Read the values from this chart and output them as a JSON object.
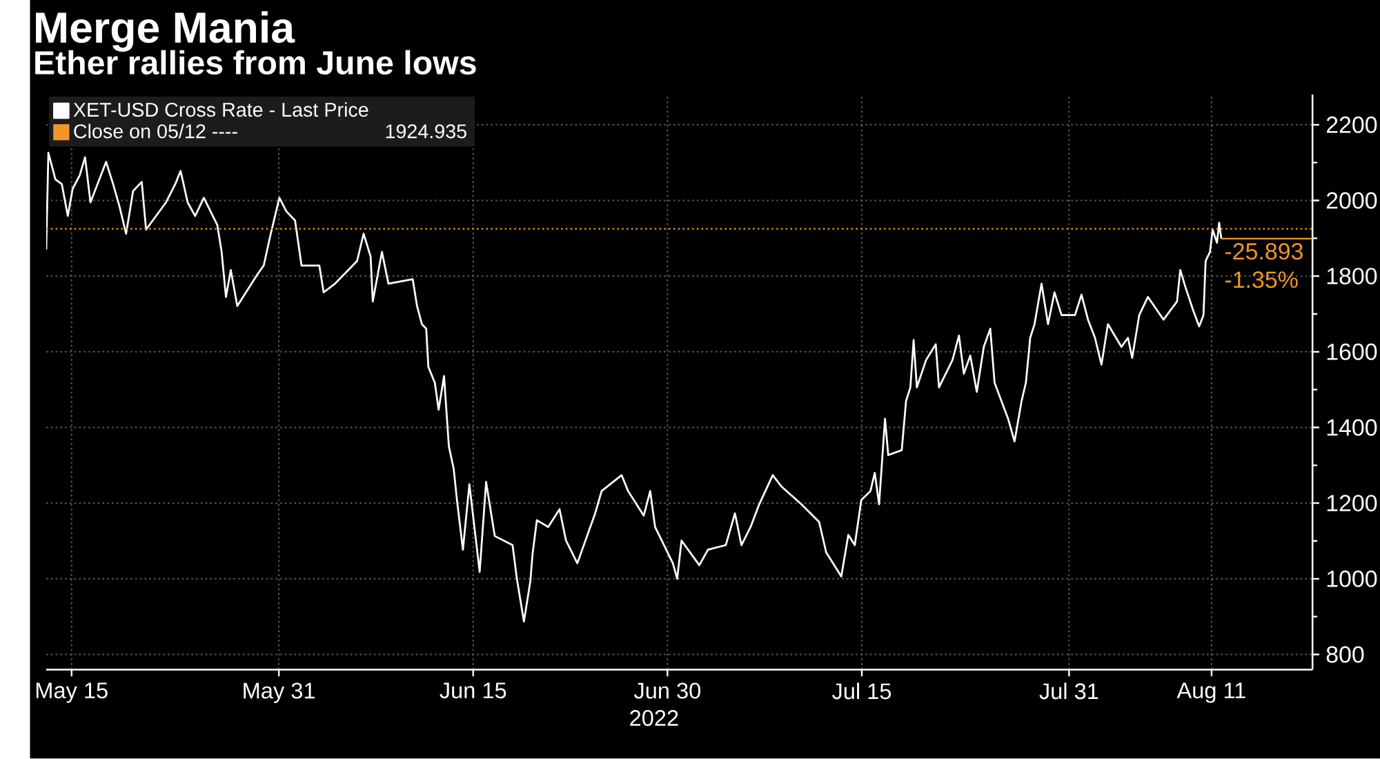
{
  "chart_data": {
    "type": "line",
    "title": "Merge Mania",
    "subtitle": "Ether rallies from June lows",
    "xlabel": "2022",
    "series": [
      {
        "name": "XET-USD Cross Rate - Last Price",
        "color": "#ffffff",
        "x": [
          "2022-05-13T01:00",
          "2022-05-13T05:00",
          "2022-05-13T18:00",
          "2022-05-14T06:00",
          "2022-05-14T17:00",
          "2022-05-15T02:00",
          "2022-05-15T15:00",
          "2022-05-16T01:00",
          "2022-05-16T11:00",
          "2022-05-17T16:00",
          "2022-05-18T05:00",
          "2022-05-18T17:00",
          "2022-05-19T05:00",
          "2022-05-19T18:00",
          "2022-05-20T10:00",
          "2022-05-20T18:00",
          "2022-05-22T07:00",
          "2022-05-23T00:00",
          "2022-05-23T10:00",
          "2022-05-23T23:00",
          "2022-05-24T13:00",
          "2022-05-25T05:00",
          "2022-05-26T06:00",
          "2022-05-26T14:00",
          "2022-05-26T22:00",
          "2022-05-27T07:00",
          "2022-05-27T19:00",
          "2022-05-29T08:00",
          "2022-05-29T20:00",
          "2022-05-30T09:00",
          "2022-05-31T01:00",
          "2022-05-31T14:00",
          "2022-06-01T06:00",
          "2022-06-01T18:00",
          "2022-06-03T03:00",
          "2022-06-03T11:00",
          "2022-06-04T08:00",
          "2022-06-06T01:00",
          "2022-06-06T13:00",
          "2022-06-07T02:00",
          "2022-06-07T06:00",
          "2022-06-07T23:00",
          "2022-06-08T11:00",
          "2022-06-10T08:00",
          "2022-06-10T16:00",
          "2022-06-11T01:00",
          "2022-06-11T09:00",
          "2022-06-11T13:00",
          "2022-06-12T01:00",
          "2022-06-12T08:00",
          "2022-06-12T18:00",
          "2022-06-13T03:00",
          "2022-06-13T12:00",
          "2022-06-13T18:00",
          "2022-06-14T05:00",
          "2022-06-14T17:00",
          "2022-06-15T12:00",
          "2022-06-16T00:00",
          "2022-06-16T16:00",
          "2022-06-18T01:00",
          "2022-06-18T09:00",
          "2022-06-18T22:00",
          "2022-06-19T10:00",
          "2022-06-19T14:00",
          "2022-06-19T22:00",
          "2022-06-20T19:00",
          "2022-06-21T16:00",
          "2022-06-22T04:00",
          "2022-06-23T01:00",
          "2022-06-24T10:00",
          "2022-06-24T22:00",
          "2022-06-26T11:00",
          "2022-06-26T23:00",
          "2022-06-28T04:00",
          "2022-06-28T16:00",
          "2022-06-29T01:00",
          "2022-06-30T10:00",
          "2022-06-30T18:00",
          "2022-07-01T02:00",
          "2022-07-02T11:00",
          "2022-07-03T03:00",
          "2022-07-04T12:00",
          "2022-07-05T05:00",
          "2022-07-05T17:00",
          "2022-07-06T10:00",
          "2022-07-07T02:00",
          "2022-07-08T03:00",
          "2022-07-08T19:00",
          "2022-07-10T08:00",
          "2022-07-11T17:00",
          "2022-07-12T06:00",
          "2022-07-13T10:00",
          "2022-07-13T23:00",
          "2022-07-14T11:00",
          "2022-07-14T23:00",
          "2022-07-15T16:00",
          "2022-07-16T00:00",
          "2022-07-16T08:00",
          "2022-07-16T19:00",
          "2022-07-17T01:00",
          "2022-07-18T02:00",
          "2022-07-18T10:00",
          "2022-07-18T18:00",
          "2022-07-19T00:00",
          "2022-07-19T06:00",
          "2022-07-19T23:00",
          "2022-07-20T17:00",
          "2022-07-20T23:00",
          "2022-07-22T00:00",
          "2022-07-22T12:00",
          "2022-07-22T21:00",
          "2022-07-23T09:00",
          "2022-07-23T21:00",
          "2022-07-24T10:00",
          "2022-07-24T22:00",
          "2022-07-25T06:00",
          "2022-07-26T07:00",
          "2022-07-26T19:00",
          "2022-07-27T08:00",
          "2022-07-27T16:00",
          "2022-07-28T00:00",
          "2022-07-28T08:00",
          "2022-07-28T21:00",
          "2022-07-29T09:00",
          "2022-07-29T21:00",
          "2022-07-30T10:00",
          "2022-07-31T11:00",
          "2022-07-31T23:00",
          "2022-08-01T11:00",
          "2022-08-02T00:00",
          "2022-08-02T12:00",
          "2022-08-03T00:00",
          "2022-08-04T01:00",
          "2022-08-04T13:00",
          "2022-08-04T21:00",
          "2022-08-05T10:00",
          "2022-08-06T02:00",
          "2022-08-07T07:00",
          "2022-08-08T08:00",
          "2022-08-08T14:00",
          "2022-08-09T00:00",
          "2022-08-09T14:00",
          "2022-08-10T01:00",
          "2022-08-10T09:00",
          "2022-08-10T13:00",
          "2022-08-10T21:00",
          "2022-08-11T02:00",
          "2022-08-11T10:00",
          "2022-08-11T14:00",
          "2022-08-11T18:00"
        ],
        "values": [
          1870,
          2126,
          2056,
          2043,
          1959,
          2031,
          2066,
          2114,
          1995,
          2102,
          2043,
          1983,
          1912,
          2025,
          2049,
          1923,
          1995,
          2043,
          2078,
          1995,
          1959,
          2007,
          1935,
          1864,
          1745,
          1816,
          1721,
          1804,
          1828,
          1912,
          2007,
          1971,
          1947,
          1828,
          1828,
          1757,
          1780,
          1840,
          1912,
          1852,
          1733,
          1864,
          1780,
          1792,
          1721,
          1673,
          1661,
          1560,
          1518,
          1447,
          1536,
          1350,
          1290,
          1208,
          1077,
          1250,
          1018,
          1256,
          1113,
          1089,
          1000,
          887,
          994,
          1065,
          1155,
          1137,
          1184,
          1101,
          1041,
          1173,
          1232,
          1274,
          1232,
          1167,
          1232,
          1137,
          1041,
          1000,
          1101,
          1036,
          1077,
          1089,
          1173,
          1089,
          1137,
          1197,
          1274,
          1244,
          1197,
          1150,
          1070,
          1006,
          1116,
          1089,
          1208,
          1232,
          1280,
          1197,
          1423,
          1327,
          1340,
          1470,
          1506,
          1631,
          1506,
          1578,
          1620,
          1506,
          1578,
          1643,
          1542,
          1590,
          1494,
          1613,
          1661,
          1518,
          1423,
          1363,
          1470,
          1518,
          1637,
          1673,
          1780,
          1673,
          1757,
          1697,
          1697,
          1751,
          1685,
          1637,
          1566,
          1673,
          1613,
          1637,
          1584,
          1697,
          1745,
          1685,
          1733,
          1816,
          1769,
          1709,
          1667,
          1697,
          1840,
          1864,
          1923,
          1888,
          1941,
          1899
        ]
      }
    ],
    "xlim": [
      "2022-05-13T01:00",
      "2022-08-18T19:00"
    ],
    "xticks": [
      {
        "value": "2022-05-15",
        "label": "May 15"
      },
      {
        "value": "2022-05-31",
        "label": "May 31"
      },
      {
        "value": "2022-06-15",
        "label": "Jun 15"
      },
      {
        "value": "2022-06-30",
        "label": "Jun 30"
      },
      {
        "value": "2022-07-15",
        "label": "Jul 15"
      },
      {
        "value": "2022-07-31",
        "label": "Jul 31"
      },
      {
        "value": "2022-08-11",
        "label": "Aug 11"
      }
    ],
    "ylim": [
      760,
      2280
    ],
    "yticks": [
      800,
      {
        "value": 900,
        "label": null
      },
      1000,
      {
        "value": 1100,
        "label": null
      },
      1200,
      {
        "value": 1300,
        "label": null
      },
      1400,
      {
        "value": 1500,
        "label": null
      },
      1600,
      {
        "value": 1700,
        "label": null
      },
      1800,
      {
        "value": 1900,
        "label": null
      },
      2000,
      {
        "value": 2100,
        "label": null
      },
      2200
    ],
    "grid": true,
    "legend": "top left",
    "ref_lines": [
      {
        "axis": "y",
        "value": 1924.935,
        "label": "Close on 05/12 ----",
        "color": "#f0962a",
        "line_style": "dotted"
      }
    ],
    "annotations": [
      {
        "text": "-25.893",
        "x": "2022-08-11T18:00",
        "y": 1899
      },
      {
        "text": "-1.35%",
        "x": "2022-08-11T18:00",
        "y": 1899
      },
      "1924.935"
    ]
  }
}
